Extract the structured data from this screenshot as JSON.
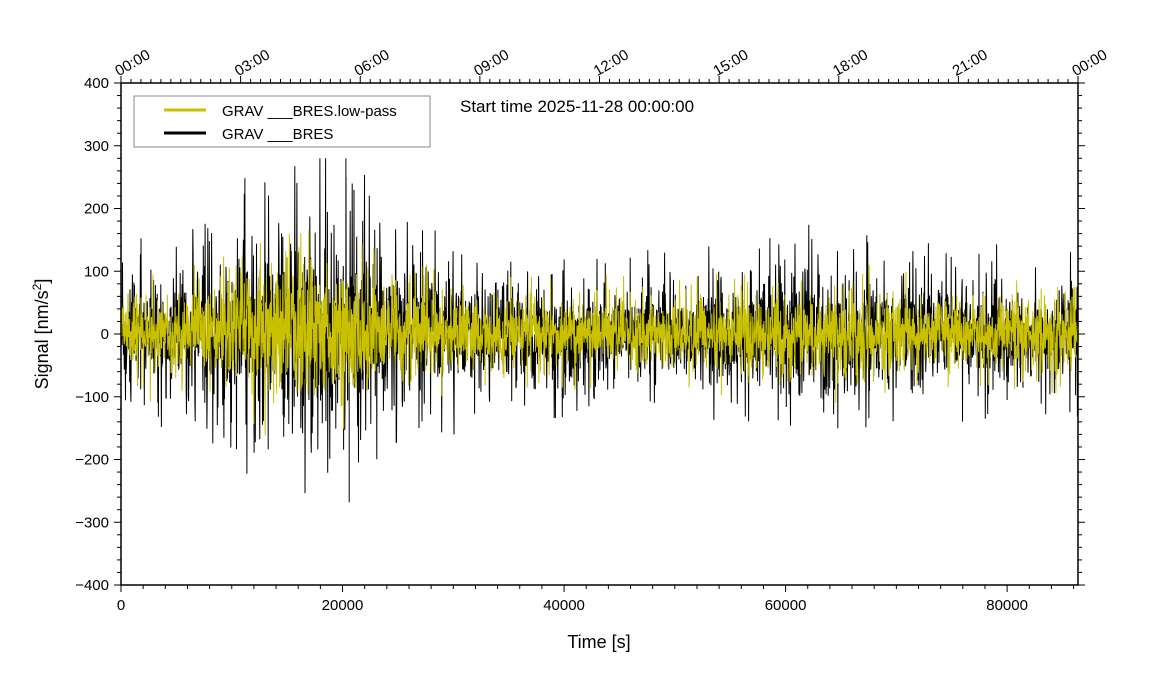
{
  "chart_data": {
    "type": "line",
    "annotation": "Start time 2025-11-28 00:00:00",
    "xlabel": "Time [s]",
    "ylabel_main": "Signal [nm/s",
    "ylabel_sup": "2",
    "ylabel_close": "]",
    "xlim": [
      0,
      86400
    ],
    "ylim": [
      -400,
      400
    ],
    "x_ticks": [
      0,
      20000,
      40000,
      60000,
      80000
    ],
    "y_ticks": [
      400,
      300,
      200,
      100,
      0,
      -100,
      -200,
      -300,
      -400
    ],
    "y_tick_labels": [
      "400",
      "300",
      "200",
      "100",
      "0",
      "−100",
      "−200",
      "−300",
      "−400"
    ],
    "top_axis_seconds": [
      0,
      10800,
      21600,
      32400,
      43200,
      54000,
      64800,
      75600,
      86400
    ],
    "top_axis_labels": [
      "00:00",
      "03:00",
      "06:00",
      "09:00",
      "12:00",
      "15:00",
      "18:00",
      "21:00",
      "00:00"
    ],
    "legend_placement": "top-left",
    "grid": false,
    "series": [
      {
        "name": "GRAV ___BRES",
        "color": "#000000",
        "envelope_x": [
          0,
          4000,
          8000,
          12000,
          14500,
          17000,
          20000,
          23000,
          26000,
          30000,
          35000,
          40000,
          45000,
          50000,
          55000,
          60000,
          63000,
          66000,
          70000,
          75000,
          80000,
          86400
        ],
        "envelope_amplitude": [
          80,
          85,
          95,
          140,
          160,
          155,
          150,
          125,
          100,
          85,
          75,
          70,
          70,
          72,
          75,
          85,
          95,
          90,
          80,
          78,
          75,
          70
        ],
        "peak_max": 280,
        "peak_min": -268
      },
      {
        "name": "GRAV ___BRES.low-pass",
        "color": "#c8c000",
        "envelope_x": [
          0,
          4000,
          8000,
          12000,
          14500,
          17000,
          20000,
          23000,
          26000,
          30000,
          35000,
          40000,
          45000,
          50000,
          55000,
          60000,
          63000,
          66000,
          70000,
          75000,
          80000,
          86400
        ],
        "envelope_amplitude": [
          55,
          58,
          65,
          90,
          105,
          100,
          95,
          80,
          65,
          58,
          52,
          50,
          50,
          50,
          52,
          58,
          62,
          60,
          55,
          53,
          52,
          50
        ],
        "peak_max": 220,
        "peak_min": -250
      }
    ]
  }
}
